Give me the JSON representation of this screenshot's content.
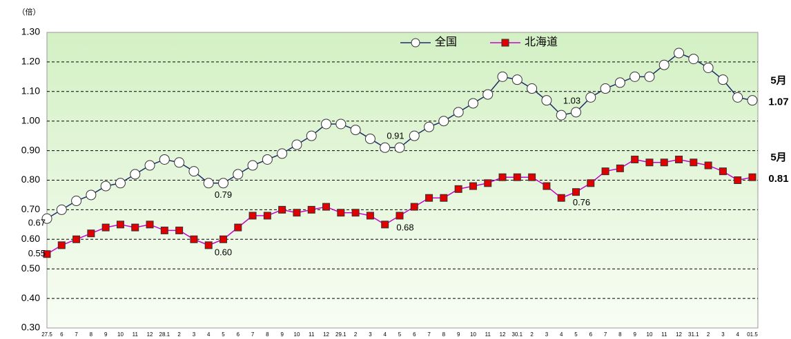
{
  "chart_data": {
    "type": "line",
    "y_unit": "（倍）",
    "categories": [
      "27.5",
      "6",
      "7",
      "8",
      "9",
      "10",
      "11",
      "12",
      "28.1",
      "2",
      "3",
      "4",
      "5",
      "6",
      "7",
      "8",
      "9",
      "10",
      "11",
      "12",
      "29.1",
      "2",
      "3",
      "4",
      "5",
      "6",
      "7",
      "8",
      "9",
      "10",
      "11",
      "12",
      "30.1",
      "2",
      "3",
      "4",
      "5",
      "6",
      "7",
      "8",
      "9",
      "10",
      "11",
      "12",
      "31.1",
      "2",
      "3",
      "4",
      "01.5"
    ],
    "series": [
      {
        "name": "全国",
        "color": "#1f2a6e",
        "marker": "circle",
        "end_label": "5月",
        "values": [
          0.67,
          0.7,
          0.73,
          0.75,
          0.78,
          0.79,
          0.82,
          0.85,
          0.87,
          0.86,
          0.83,
          0.79,
          0.79,
          0.82,
          0.85,
          0.87,
          0.89,
          0.92,
          0.95,
          0.99,
          0.99,
          0.97,
          0.94,
          0.91,
          0.91,
          0.95,
          0.98,
          1.0,
          1.03,
          1.06,
          1.09,
          1.15,
          1.14,
          1.11,
          1.07,
          1.02,
          1.03,
          1.08,
          1.11,
          1.13,
          1.15,
          1.15,
          1.19,
          1.23,
          1.21,
          1.18,
          1.14,
          1.08,
          1.07
        ],
        "value_labels": [
          "0.67",
          null,
          null,
          null,
          null,
          null,
          null,
          null,
          null,
          null,
          null,
          null,
          "0.79",
          null,
          null,
          null,
          null,
          null,
          null,
          null,
          null,
          null,
          null,
          null,
          "0.91",
          null,
          null,
          null,
          null,
          null,
          null,
          null,
          null,
          null,
          null,
          null,
          "1.03",
          null,
          null,
          null,
          null,
          null,
          null,
          null,
          null,
          null,
          null,
          null,
          "1.07"
        ]
      },
      {
        "name": "北海道",
        "color": "#cc00cc",
        "marker": "square",
        "marker_color": "#e00000",
        "end_label": "5月",
        "values": [
          0.55,
          0.58,
          0.6,
          0.62,
          0.64,
          0.65,
          0.64,
          0.65,
          0.63,
          0.63,
          0.6,
          0.58,
          0.6,
          0.64,
          0.68,
          0.68,
          0.7,
          0.69,
          0.7,
          0.71,
          0.69,
          0.69,
          0.68,
          0.65,
          0.68,
          0.71,
          0.74,
          0.74,
          0.77,
          0.78,
          0.79,
          0.81,
          0.81,
          0.81,
          0.78,
          0.74,
          0.76,
          0.79,
          0.83,
          0.84,
          0.87,
          0.86,
          0.86,
          0.87,
          0.86,
          0.85,
          0.83,
          0.8,
          0.81
        ],
        "value_labels": [
          "0.55",
          null,
          null,
          null,
          null,
          null,
          null,
          null,
          null,
          null,
          null,
          null,
          "0.60",
          null,
          null,
          null,
          null,
          null,
          null,
          null,
          null,
          null,
          null,
          null,
          "0.68",
          null,
          null,
          null,
          null,
          null,
          null,
          null,
          null,
          null,
          null,
          null,
          "0.76",
          null,
          null,
          null,
          null,
          null,
          null,
          null,
          null,
          null,
          null,
          null,
          "0.81"
        ]
      }
    ],
    "ylim": [
      0.3,
      1.3
    ],
    "yticks": [
      {
        "value": 0.3,
        "label": "0.30"
      },
      {
        "value": 0.4,
        "label": "0.40"
      },
      {
        "value": 0.5,
        "label": "0.50"
      },
      {
        "value": 0.6,
        "label": "0.60"
      },
      {
        "value": 0.7,
        "label": "0.70"
      },
      {
        "value": 0.8,
        "label": "0.80"
      },
      {
        "value": 0.9,
        "label": "0.90"
      },
      {
        "value": 1.0,
        "label": "1.00"
      },
      {
        "value": 1.1,
        "label": "1.10"
      },
      {
        "value": 1.2,
        "label": "1.20"
      },
      {
        "value": 1.3,
        "label": "1.30"
      }
    ],
    "grid": true
  }
}
